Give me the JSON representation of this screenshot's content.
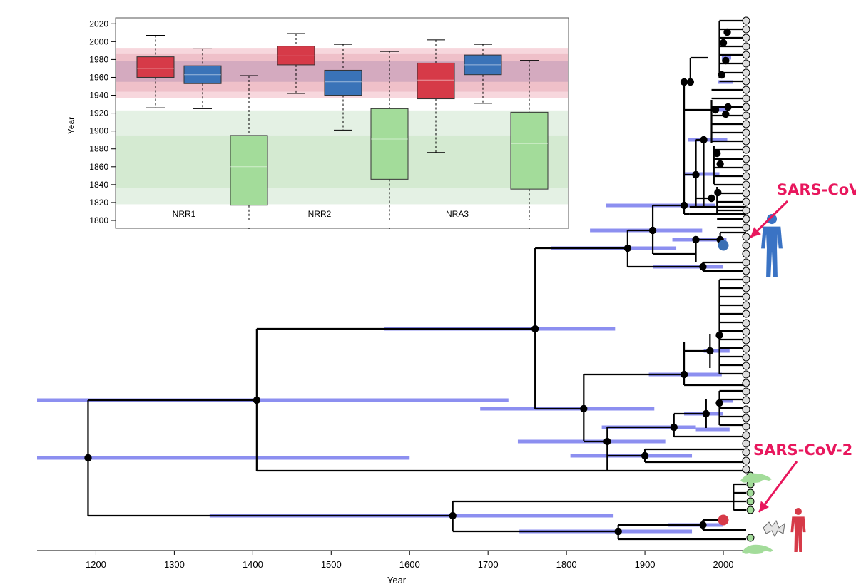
{
  "chart_data": [
    {
      "type": "tree",
      "xlabel": "Year",
      "xlim": [
        1125,
        2030
      ],
      "x_ticks": [
        1200,
        1300,
        1400,
        1500,
        1600,
        1700,
        1800,
        1900,
        2000
      ],
      "annotations": [
        "SARS-CoV",
        "SARS-CoV-2"
      ],
      "colors": {
        "branch": "#000000",
        "hpd_bar": "#8c8ff0",
        "hpd_inner": "#1a1f8c",
        "tip_default": "#dddddd",
        "tip_sars_cov": "#3a6fb4",
        "tip_sars_cov2": "#d63a48",
        "tip_green": "#a3dc9a",
        "callout": "#e8175d",
        "human_blue": "#3a73c4",
        "human_red": "#d63a48"
      },
      "node_ages": [
        1190,
        1405,
        1655,
        1760,
        1822,
        1866,
        1878,
        1910,
        1937,
        1974,
        1996,
        2013
      ]
    },
    {
      "type": "box",
      "ylabel": "Year",
      "ylim": [
        1800,
        2025
      ],
      "y_ticks": [
        1800,
        1820,
        1840,
        1860,
        1880,
        1900,
        1920,
        1940,
        1960,
        1980,
        2000,
        2020
      ],
      "groups": [
        "NRR1",
        "NRR2",
        "NRA3"
      ],
      "boxes": [
        {
          "group": "NRR1",
          "color": "red",
          "whisker_low": 1926,
          "q1": 1960,
          "median": 1970,
          "q3": 1983,
          "whisker_high": 2007
        },
        {
          "group": "NRR1",
          "color": "blue",
          "whisker_low": 1925,
          "q1": 1953,
          "median": 1963,
          "q3": 1973,
          "whisker_high": 1992
        },
        {
          "group": "NRR1",
          "color": "green",
          "whisker_low": 1800,
          "q1": 1817,
          "median": 1860,
          "q3": 1895,
          "whisker_high": 1962
        },
        {
          "group": "NRR2",
          "color": "red",
          "whisker_low": 1942,
          "q1": 1974,
          "median": 1984,
          "q3": 1995,
          "whisker_high": 2009
        },
        {
          "group": "NRR2",
          "color": "blue",
          "whisker_low": 1901,
          "q1": 1940,
          "median": 1955,
          "q3": 1968,
          "whisker_high": 1997
        },
        {
          "group": "NRR2",
          "color": "green",
          "whisker_low": 1800,
          "q1": 1846,
          "median": 1891,
          "q3": 1925,
          "whisker_high": 1989
        },
        {
          "group": "NRA3",
          "color": "red",
          "whisker_low": 1876,
          "q1": 1936,
          "median": 1957,
          "q3": 1976,
          "whisker_high": 2002
        },
        {
          "group": "NRA3",
          "color": "blue",
          "whisker_low": 1931,
          "q1": 1963,
          "median": 1974,
          "q3": 1985,
          "whisker_high": 1997
        },
        {
          "group": "NRA3",
          "color": "green",
          "whisker_low": 1800,
          "q1": 1835,
          "median": 1886,
          "q3": 1921,
          "whisker_high": 1979
        }
      ],
      "colors": {
        "red": "#d63a48",
        "blue": "#3a73b8",
        "green": "#a3dc9a"
      },
      "bands": [
        {
          "color": "#f3c6cf",
          "low": 1937,
          "high": 1993
        },
        {
          "color": "#ddeedd",
          "low": 1818,
          "high": 1923
        }
      ]
    }
  ]
}
